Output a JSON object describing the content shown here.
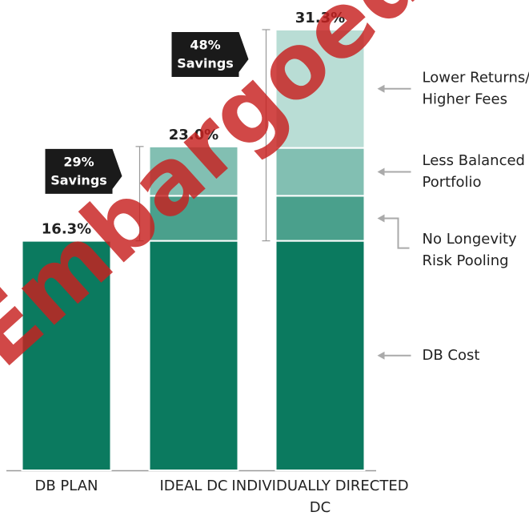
{
  "chart_data": {
    "type": "stacked_bar",
    "categories": [
      "DB PLAN",
      "IDEAL DC",
      "INDIVIDUALLY DIRECTED DC"
    ],
    "series": [
      {
        "name": "DB Cost",
        "color": "#0b7a5f",
        "values": [
          16.3,
          16.3,
          16.3
        ]
      },
      {
        "name": "No Longevity Risk Pooling",
        "color": "#4aa08c",
        "values": [
          null,
          3.2,
          3.2
        ]
      },
      {
        "name": "Less Balanced Portfolio",
        "color": "#82bfb2",
        "values": [
          null,
          3.5,
          3.4
        ]
      },
      {
        "name": "Lower Returns/ Higher Fees",
        "color": "#b9ddd5",
        "values": [
          null,
          null,
          8.4
        ]
      }
    ],
    "totals": [
      16.3,
      23.0,
      31.3
    ],
    "total_labels": [
      "16.3%",
      "23.0%",
      "31.3%"
    ],
    "annotations": [
      {
        "category": 1,
        "line1": "29%",
        "line2": "Savings"
      },
      {
        "category": 2,
        "line1": "48%",
        "line2": "Savings"
      }
    ],
    "ylim": [
      0,
      31.3
    ],
    "watermark": "Embargoed"
  }
}
